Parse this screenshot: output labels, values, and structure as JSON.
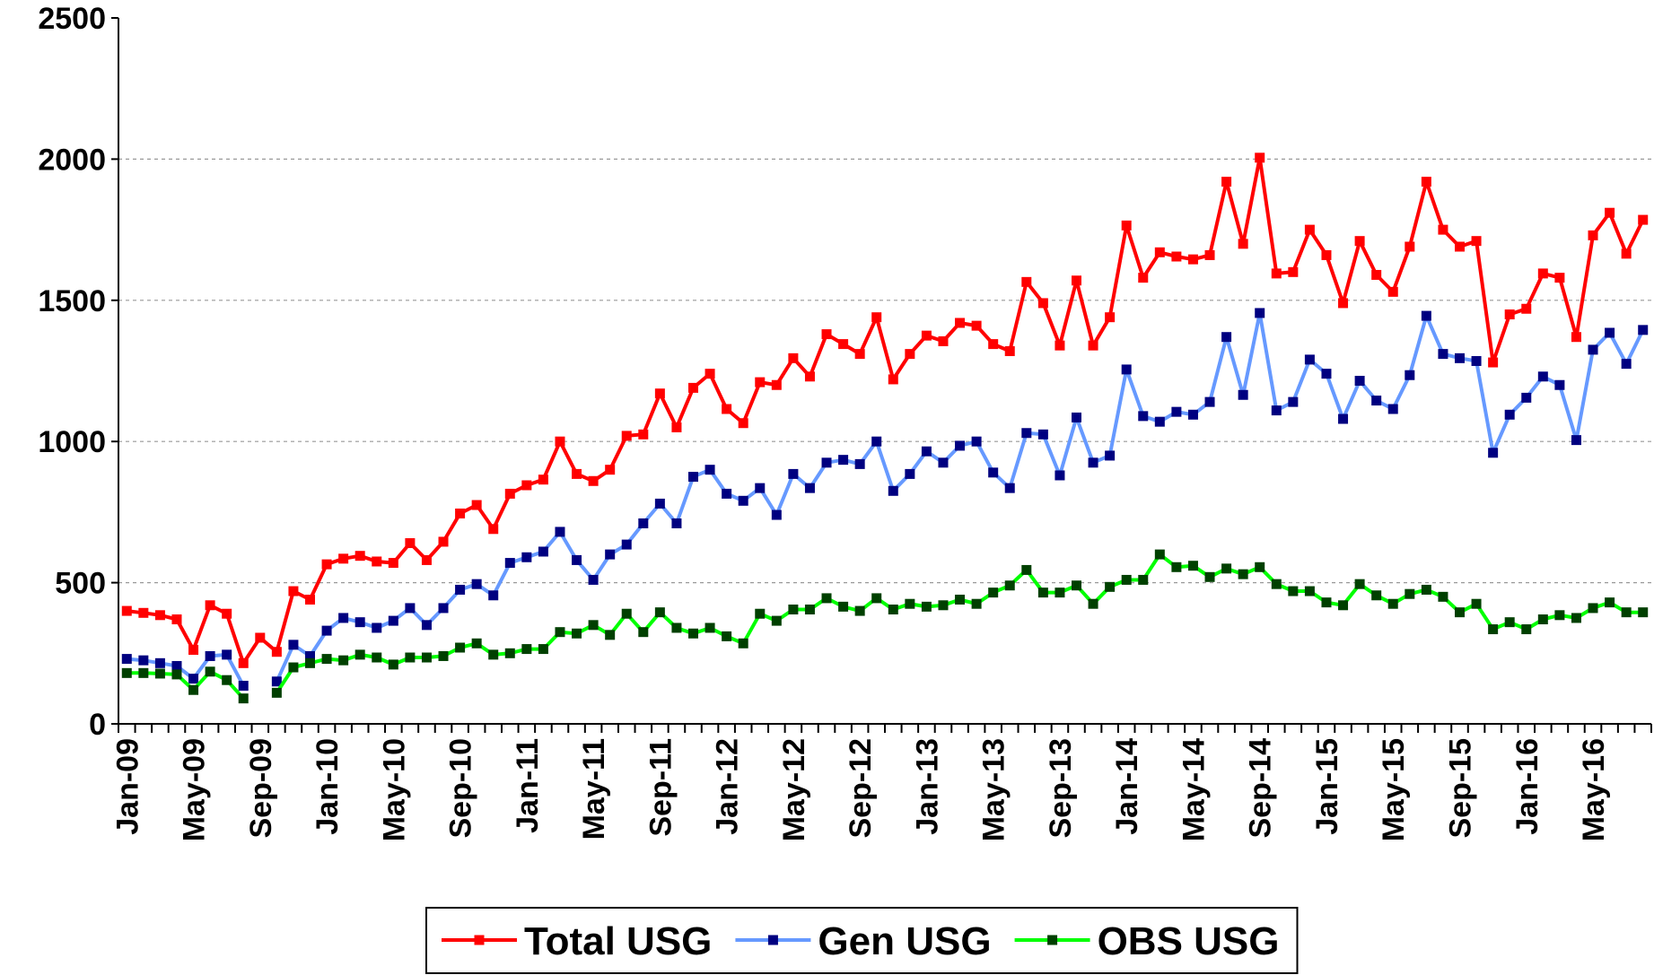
{
  "chart_data": {
    "type": "line",
    "categories": [
      "Jan-09",
      null,
      null,
      null,
      "May-09",
      null,
      null,
      null,
      "Sep-09",
      null,
      null,
      null,
      "Jan-10",
      null,
      null,
      null,
      "May-10",
      null,
      null,
      null,
      "Sep-10",
      null,
      null,
      null,
      "Jan-11",
      null,
      null,
      null,
      "May-11",
      null,
      null,
      null,
      "Sep-11",
      null,
      null,
      null,
      "Jan-12",
      null,
      null,
      null,
      "May-12",
      null,
      null,
      null,
      "Sep-12",
      null,
      null,
      null,
      "Jan-13",
      null,
      null,
      null,
      "May-13",
      null,
      null,
      null,
      "Sep-13",
      null,
      null,
      null,
      "Jan-14",
      null,
      null,
      null,
      "May-14",
      null,
      null,
      null,
      "Sep-14",
      null,
      null,
      null,
      "Jan-15",
      null,
      null,
      null,
      "May-15",
      null,
      null,
      null,
      "Sep-15",
      null,
      null,
      null,
      "Jan-16",
      null,
      null,
      null,
      "May-16",
      null,
      null,
      null
    ],
    "series": [
      {
        "name": "Total USG",
        "color": "#ff0000",
        "marker_color": "#ff0000",
        "values": [
          400,
          393,
          385,
          370,
          262,
          420,
          390,
          215,
          305,
          255,
          470,
          440,
          565,
          585,
          595,
          575,
          570,
          640,
          580,
          645,
          745,
          775,
          690,
          815,
          845,
          865,
          1000,
          885,
          860,
          900,
          1020,
          1025,
          1170,
          1050,
          1190,
          1240,
          1115,
          1065,
          1210,
          1200,
          1295,
          1230,
          1380,
          1345,
          1310,
          1440,
          1220,
          1310,
          1375,
          1355,
          1420,
          1410,
          1345,
          1320,
          1565,
          1490,
          1340,
          1570,
          1340,
          1440,
          1765,
          1580,
          1670,
          1655,
          1645,
          1660,
          1920,
          1700,
          2005,
          1595,
          1600,
          1750,
          1660,
          1490,
          1710,
          1590,
          1530,
          1690,
          1920,
          1750,
          1690,
          1710,
          1280,
          1450,
          1470,
          1595,
          1580,
          1370,
          1730,
          1810,
          1665,
          1785
        ]
      },
      {
        "name": "Gen USG",
        "color": "#6699ff",
        "marker_color": "#000080",
        "values": [
          230,
          225,
          215,
          205,
          160,
          240,
          245,
          135,
          null,
          150,
          280,
          240,
          330,
          375,
          360,
          340,
          365,
          410,
          350,
          410,
          475,
          495,
          455,
          570,
          590,
          610,
          680,
          580,
          510,
          600,
          635,
          710,
          780,
          710,
          875,
          900,
          815,
          790,
          835,
          740,
          885,
          835,
          925,
          935,
          920,
          1000,
          825,
          885,
          965,
          925,
          985,
          1000,
          890,
          835,
          1030,
          1025,
          880,
          1085,
          925,
          950,
          1255,
          1090,
          1070,
          1105,
          1095,
          1140,
          1370,
          1165,
          1455,
          1110,
          1140,
          1290,
          1240,
          1080,
          1215,
          1145,
          1115,
          1235,
          1445,
          1310,
          1295,
          1285,
          960,
          1095,
          1155,
          1230,
          1200,
          1005,
          1325,
          1385,
          1275,
          1395
        ]
      },
      {
        "name": "OBS USG",
        "color": "#00ff00",
        "marker_color": "#004000",
        "values": [
          180,
          180,
          178,
          175,
          120,
          185,
          155,
          90,
          null,
          110,
          200,
          215,
          230,
          225,
          245,
          235,
          210,
          235,
          235,
          240,
          270,
          285,
          245,
          250,
          265,
          265,
          325,
          320,
          350,
          315,
          390,
          325,
          395,
          340,
          320,
          340,
          310,
          285,
          390,
          365,
          405,
          405,
          445,
          415,
          400,
          445,
          405,
          425,
          415,
          420,
          440,
          425,
          465,
          490,
          545,
          465,
          465,
          490,
          425,
          485,
          510,
          510,
          600,
          555,
          560,
          520,
          550,
          530,
          555,
          495,
          470,
          470,
          430,
          420,
          495,
          455,
          425,
          460,
          475,
          450,
          395,
          425,
          335,
          360,
          335,
          370,
          385,
          375,
          410,
          430,
          395,
          395
        ]
      }
    ],
    "ylim": [
      0,
      2500
    ],
    "yticks": [
      0,
      500,
      1000,
      1500,
      2000,
      2500
    ],
    "grid": true,
    "legend": "bottom"
  }
}
